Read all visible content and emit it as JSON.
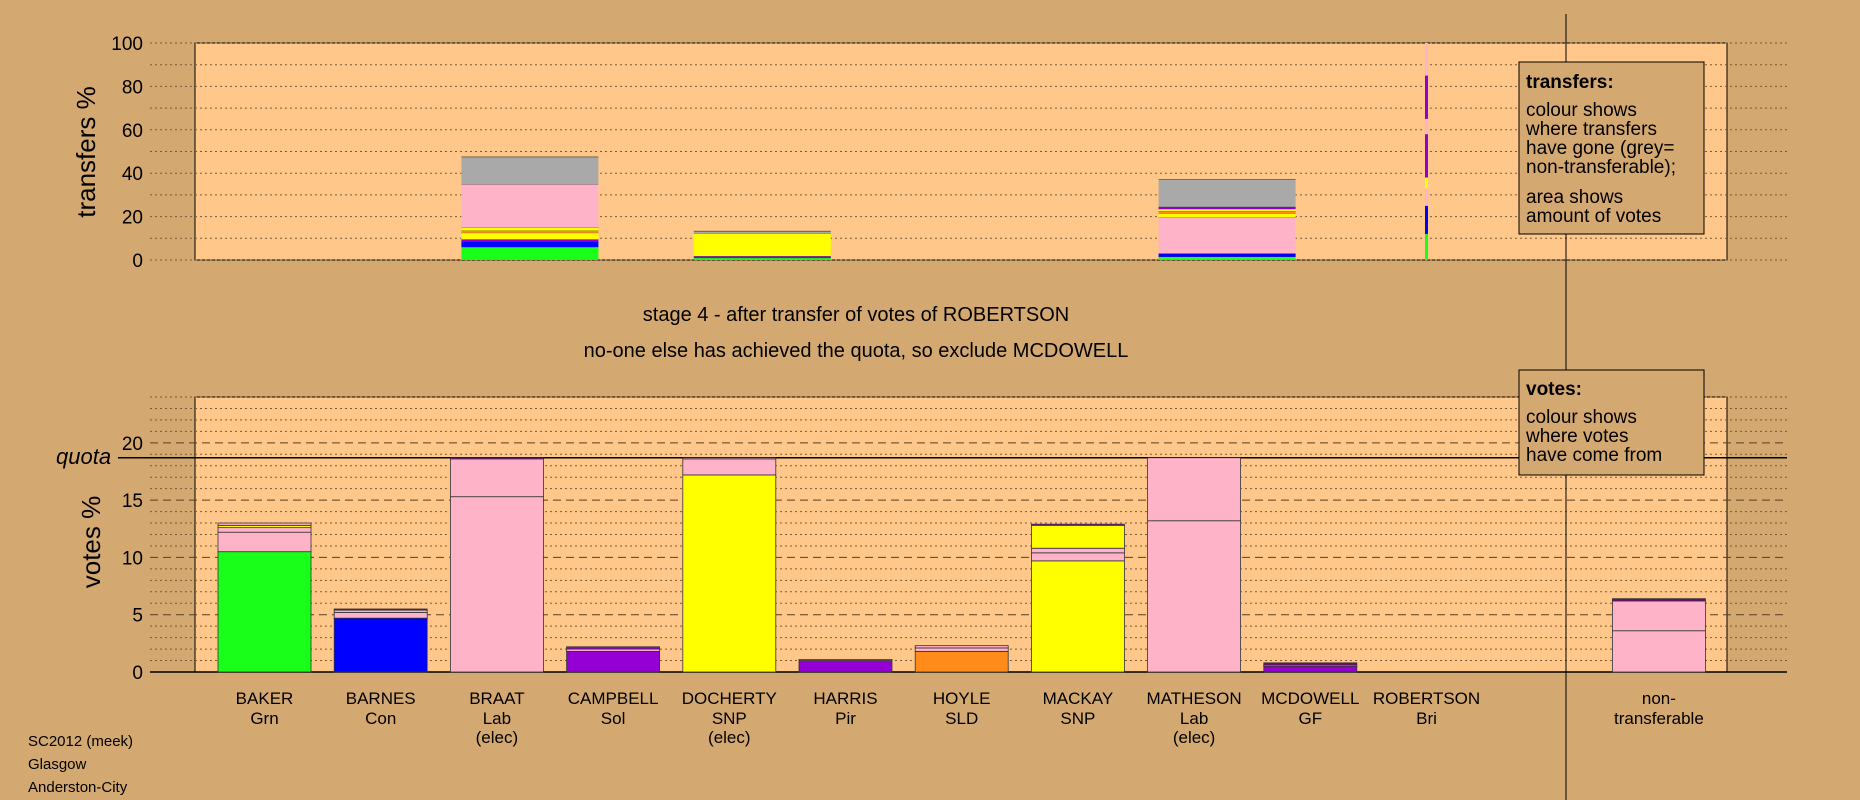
{
  "stage_title": "stage 4 - after transfer of votes of ROBERTSON",
  "stage_subtitle": "no-one else has achieved the quota, so exclude MCDOWELL",
  "footer": [
    "SC2012 (meek)",
    "Glasgow",
    "Anderston-City"
  ],
  "legend_transfers": {
    "title": "transfers:",
    "lines_a": [
      "colour shows",
      "where transfers",
      "have gone (grey=",
      "non-transferable);"
    ],
    "lines_b": [
      "area shows",
      "amount of votes"
    ]
  },
  "legend_votes": {
    "title": "votes:",
    "lines": [
      "colour shows",
      "where votes",
      "have come from"
    ]
  },
  "colors": {
    "background": "#d4a871",
    "plot_bg": "#ffc88a",
    "Grn": "#1aff1a",
    "Con": "#0000ff",
    "Lab": "#ffb3c8",
    "Sol": "#9400d3",
    "SNP": "#ffff00",
    "Pir": "#9400d3",
    "SLD": "#ff8c1a",
    "GF": "#9400d3",
    "Bri": "#800080",
    "nontransferable": "#a9a9a9"
  },
  "chart_data": [
    {
      "type": "bar",
      "name": "transfers",
      "ylabel": "transfers %",
      "ylim": [
        0,
        100
      ],
      "yticks": [
        0,
        20,
        40,
        60,
        80,
        100
      ],
      "bars": [
        {
          "slot": 2,
          "segments": [
            {
              "c": "Grn",
              "v": 6
            },
            {
              "c": "Con",
              "v": 2.5
            },
            {
              "c": "Sol",
              "v": 1
            },
            {
              "c": "SNP",
              "v": 3
            },
            {
              "c": "SLD",
              "v": 1
            },
            {
              "c": "SNP",
              "v": 1.5
            },
            {
              "c": "Lab",
              "v": 20
            },
            {
              "c": "nontransferable",
              "v": 12.5
            }
          ]
        },
        {
          "slot": 4,
          "segments": [
            {
              "c": "Grn",
              "v": 1
            },
            {
              "c": "Sol",
              "v": 0.8
            },
            {
              "c": "SNP",
              "v": 10.5
            },
            {
              "c": "nontransferable",
              "v": 1
            }
          ]
        },
        {
          "slot": 8,
          "segments": [
            {
              "c": "Grn",
              "v": 1.5
            },
            {
              "c": "Con",
              "v": 1.5
            },
            {
              "c": "Lab",
              "v": 16.5
            },
            {
              "c": "SNP",
              "v": 2
            },
            {
              "c": "SLD",
              "v": 1
            },
            {
              "c": "SNP",
              "v": 1
            },
            {
              "c": "Sol",
              "v": 1
            },
            {
              "c": "nontransferable",
              "v": 12.5
            }
          ]
        },
        {
          "slot": 10,
          "thin": true,
          "segments": [
            {
              "c": "Grn",
              "v": 12
            },
            {
              "c": "Con",
              "v": 13
            },
            {
              "c": "Lab",
              "v": 8
            },
            {
              "c": "SNP",
              "v": 5
            },
            {
              "c": "Sol",
              "v": 20
            },
            {
              "c": "Lab",
              "v": 7
            },
            {
              "c": "Sol",
              "v": 20
            },
            {
              "c": "Lab",
              "v": 15
            }
          ]
        }
      ]
    },
    {
      "type": "bar",
      "name": "votes",
      "ylabel": "votes %",
      "ylim": [
        0,
        24
      ],
      "yticks": [
        0,
        5,
        10,
        15,
        20
      ],
      "quota": 18.7,
      "quota_label": "quota",
      "categories": [
        {
          "name": "BAKER",
          "party": "Grn",
          "elec": ""
        },
        {
          "name": "BARNES",
          "party": "Con",
          "elec": ""
        },
        {
          "name": "BRAAT",
          "party": "Lab",
          "elec": "(elec)"
        },
        {
          "name": "CAMPBELL",
          "party": "Sol",
          "elec": ""
        },
        {
          "name": "DOCHERTY",
          "party": "SNP",
          "elec": "(elec)"
        },
        {
          "name": "HARRIS",
          "party": "Pir",
          "elec": ""
        },
        {
          "name": "HOYLE",
          "party": "SLD",
          "elec": ""
        },
        {
          "name": "MACKAY",
          "party": "SNP",
          "elec": ""
        },
        {
          "name": "MATHESON",
          "party": "Lab",
          "elec": "(elec)"
        },
        {
          "name": "MCDOWELL",
          "party": "GF",
          "elec": ""
        },
        {
          "name": "ROBERTSON",
          "party": "Bri",
          "elec": ""
        }
      ],
      "nontransferable_label": [
        "non-",
        "transferable"
      ],
      "bars": [
        {
          "segments": [
            {
              "c": "Grn",
              "v": 10.5
            },
            {
              "c": "Lab",
              "v": 1.7
            },
            {
              "c": "Lab",
              "v": 0.4
            },
            {
              "c": "SNP",
              "v": 0.2
            },
            {
              "c": "Lab",
              "v": 0.2
            }
          ]
        },
        {
          "segments": [
            {
              "c": "Con",
              "v": 4.7
            },
            {
              "c": "Lab",
              "v": 0.5
            },
            {
              "c": "Lab",
              "v": 0.2
            },
            {
              "c": "Bri",
              "v": 0.1
            }
          ]
        },
        {
          "segments": [
            {
              "c": "Lab",
              "v": 15.3
            },
            {
              "c": "Lab",
              "v": 3.3
            },
            {
              "c": "Sol",
              "v": 0.1
            }
          ]
        },
        {
          "segments": [
            {
              "c": "Sol",
              "v": 1.8
            },
            {
              "c": "Lab",
              "v": 0.2
            },
            {
              "c": "Sol",
              "v": 0.2
            }
          ]
        },
        {
          "segments": [
            {
              "c": "SNP",
              "v": 17.2
            },
            {
              "c": "Lab",
              "v": 1.4
            },
            {
              "c": "Lab",
              "v": 0.1
            }
          ]
        },
        {
          "segments": [
            {
              "c": "Pir",
              "v": 1.0
            },
            {
              "c": "Lab",
              "v": 0.1
            }
          ]
        },
        {
          "segments": [
            {
              "c": "SLD",
              "v": 1.8
            },
            {
              "c": "Lab",
              "v": 0.3
            },
            {
              "c": "Lab",
              "v": 0.2
            }
          ]
        },
        {
          "segments": [
            {
              "c": "SNP",
              "v": 9.7
            },
            {
              "c": "Lab",
              "v": 0.7
            },
            {
              "c": "Lab",
              "v": 0.4
            },
            {
              "c": "SNP",
              "v": 2.0
            },
            {
              "c": "Sol",
              "v": 0.1
            }
          ]
        },
        {
          "segments": [
            {
              "c": "Lab",
              "v": 13.2
            },
            {
              "c": "Lab",
              "v": 5.5
            }
          ]
        },
        {
          "segments": [
            {
              "c": "GF",
              "v": 0.5
            },
            {
              "c": "Lab",
              "v": 0.1
            },
            {
              "c": "Bri",
              "v": 0.2
            }
          ]
        },
        {
          "segments": []
        }
      ],
      "nontransferable": {
        "segments": [
          {
            "c": "Lab",
            "v": 3.6
          },
          {
            "c": "Lab",
            "v": 2.6
          },
          {
            "c": "Bri",
            "v": 0.2
          }
        ]
      }
    }
  ]
}
